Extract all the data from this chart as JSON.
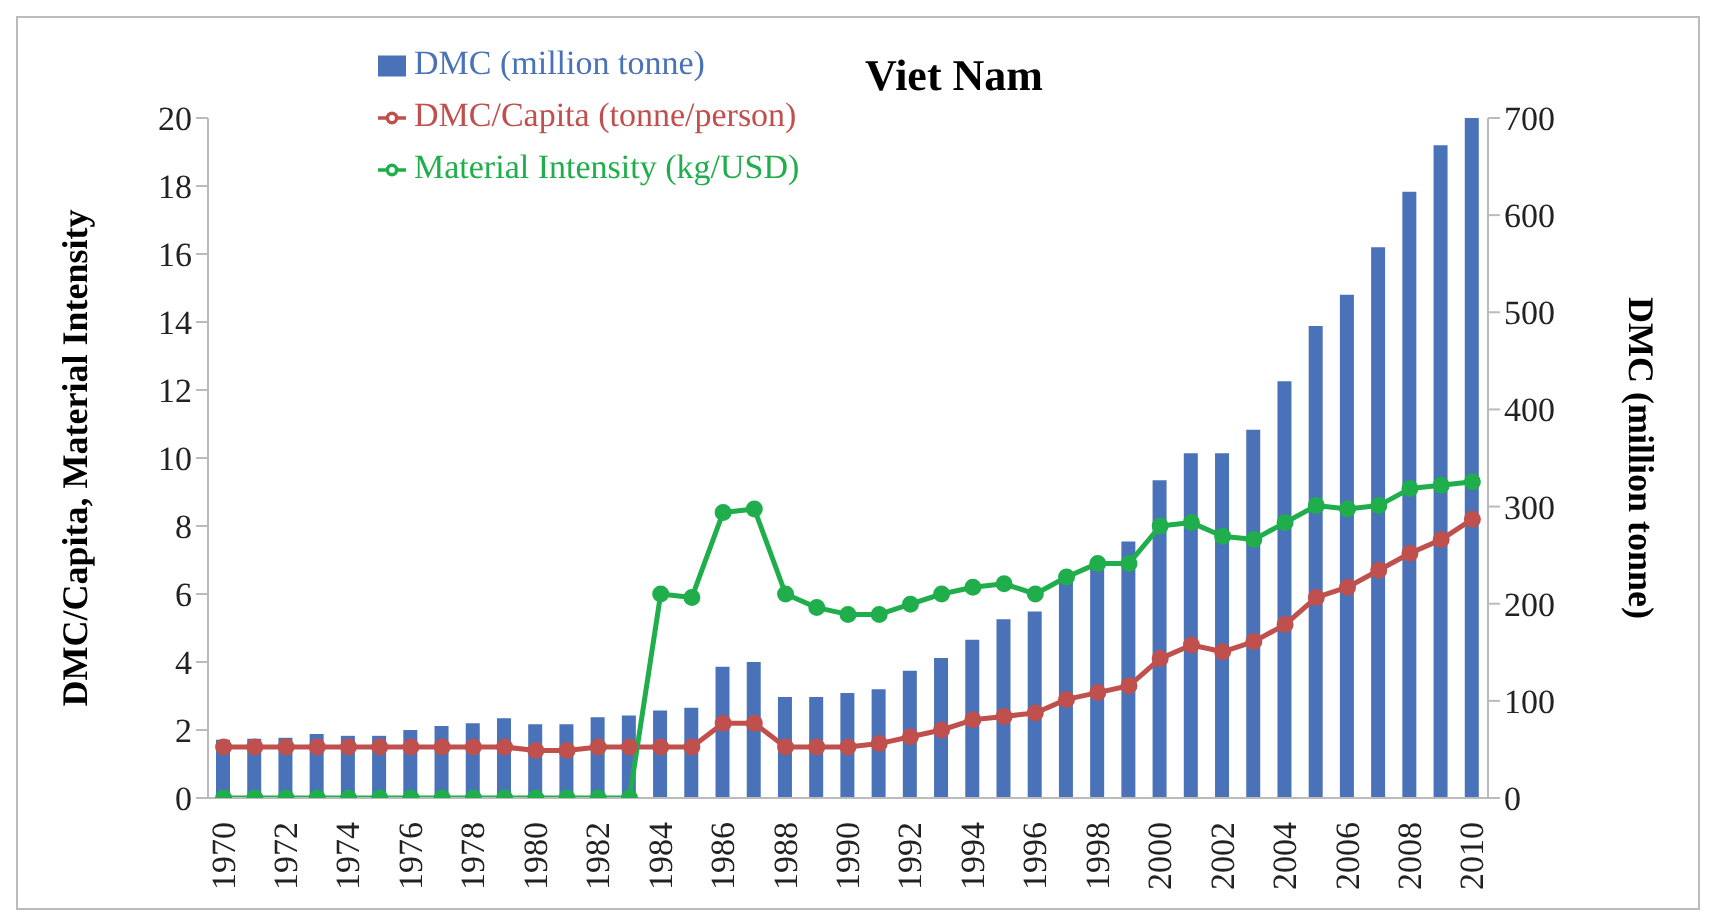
{
  "chart_data": {
    "type": "bar",
    "title": "Viet Nam",
    "ylabel": "DMC/Capita,  Material Intensity",
    "y2label": "DMC (million tonne)",
    "categories": [
      "1970",
      null,
      "1972",
      null,
      "1974",
      null,
      "1976",
      null,
      "1978",
      null,
      "1980",
      null,
      "1982",
      null,
      "1984",
      null,
      "1986",
      null,
      "1988",
      null,
      "1990",
      null,
      "1992",
      null,
      "1994",
      null,
      "1996",
      null,
      "1998",
      null,
      "2000",
      null,
      "2002",
      null,
      "2004",
      null,
      "2006",
      null,
      "2008",
      null,
      "2010"
    ],
    "series": [
      {
        "name": "DMC (million tonne)",
        "axis": "y2",
        "color": "#4a72b8",
        "values": [
          60,
          61,
          62,
          66,
          64,
          64,
          70,
          74,
          77,
          82,
          76,
          76,
          83,
          85,
          90,
          93,
          135,
          140,
          104,
          104,
          108,
          112,
          131,
          144,
          163,
          184,
          192,
          226,
          239,
          264,
          327,
          355,
          355,
          379,
          429,
          486,
          518,
          567,
          624,
          672,
          700
        ]
      },
      {
        "name": "DMC/Capita (tonne/person)",
        "type": "line",
        "color": "#c0504d",
        "values": [
          1.5,
          1.5,
          1.5,
          1.5,
          1.5,
          1.5,
          1.5,
          1.5,
          1.5,
          1.5,
          1.4,
          1.4,
          1.5,
          1.5,
          1.5,
          1.5,
          2.2,
          2.2,
          1.5,
          1.5,
          1.5,
          1.6,
          1.8,
          2.0,
          2.3,
          2.4,
          2.5,
          2.9,
          3.1,
          3.3,
          4.1,
          4.5,
          4.3,
          4.6,
          5.1,
          5.9,
          6.2,
          6.7,
          7.2,
          7.6,
          8.2
        ]
      },
      {
        "name": "Material Intensity (kg/USD)",
        "type": "line",
        "color": "#1fae4b",
        "values": [
          0,
          0,
          0,
          0,
          0,
          0,
          0,
          0,
          0,
          0,
          0,
          0,
          0,
          0,
          6.0,
          5.9,
          8.4,
          8.5,
          6.0,
          5.6,
          5.4,
          5.4,
          5.7,
          6.0,
          6.2,
          6.3,
          6.0,
          6.5,
          6.9,
          6.9,
          8.0,
          8.1,
          7.7,
          7.6,
          8.1,
          8.6,
          8.5,
          8.6,
          9.1,
          9.2,
          9.3
        ]
      }
    ],
    "ylim": [
      0,
      20
    ],
    "yticks": [
      0,
      2,
      4,
      6,
      8,
      10,
      12,
      14,
      16,
      18,
      20
    ],
    "y2lim": [
      0,
      700
    ],
    "y2ticks": [
      0,
      100,
      200,
      300,
      400,
      500,
      600,
      700
    ],
    "grid": false,
    "legend": "top left",
    "marker": "circle"
  }
}
